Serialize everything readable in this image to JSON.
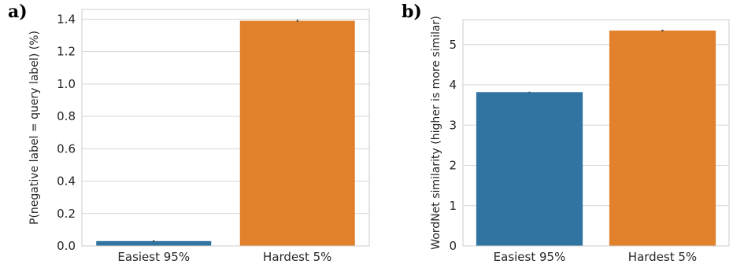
{
  "chart_data": [
    {
      "panel_label": "a)",
      "type": "bar",
      "categories": [
        "Easiest 95%",
        "Hardest 5%"
      ],
      "values": [
        0.03,
        1.39
      ],
      "errors": [
        0.005,
        0.006
      ],
      "colors": [
        "#3274a1",
        "#e1812c"
      ],
      "ylabel": "P(negative label = query label) (%)",
      "ylim": [
        0,
        1.46
      ],
      "yticks": [
        0.0,
        0.2,
        0.4,
        0.6,
        0.8,
        1.0,
        1.2,
        1.4
      ],
      "ytick_labels": [
        "0.0",
        "0.2",
        "0.4",
        "0.6",
        "0.8",
        "1.0",
        "1.2",
        "1.4"
      ],
      "grid": true
    },
    {
      "panel_label": "b)",
      "type": "bar",
      "categories": [
        "Easiest 95%",
        "Hardest 5%"
      ],
      "values": [
        3.82,
        5.35
      ],
      "errors": [
        0.01,
        0.02
      ],
      "colors": [
        "#3274a1",
        "#e1812c"
      ],
      "ylabel": "WordNet similarity (higher is more similar)",
      "ylim": [
        0,
        5.62
      ],
      "yticks": [
        0,
        1,
        2,
        3,
        4,
        5
      ],
      "ytick_labels": [
        "0",
        "1",
        "2",
        "3",
        "4",
        "5"
      ],
      "grid": true
    }
  ]
}
